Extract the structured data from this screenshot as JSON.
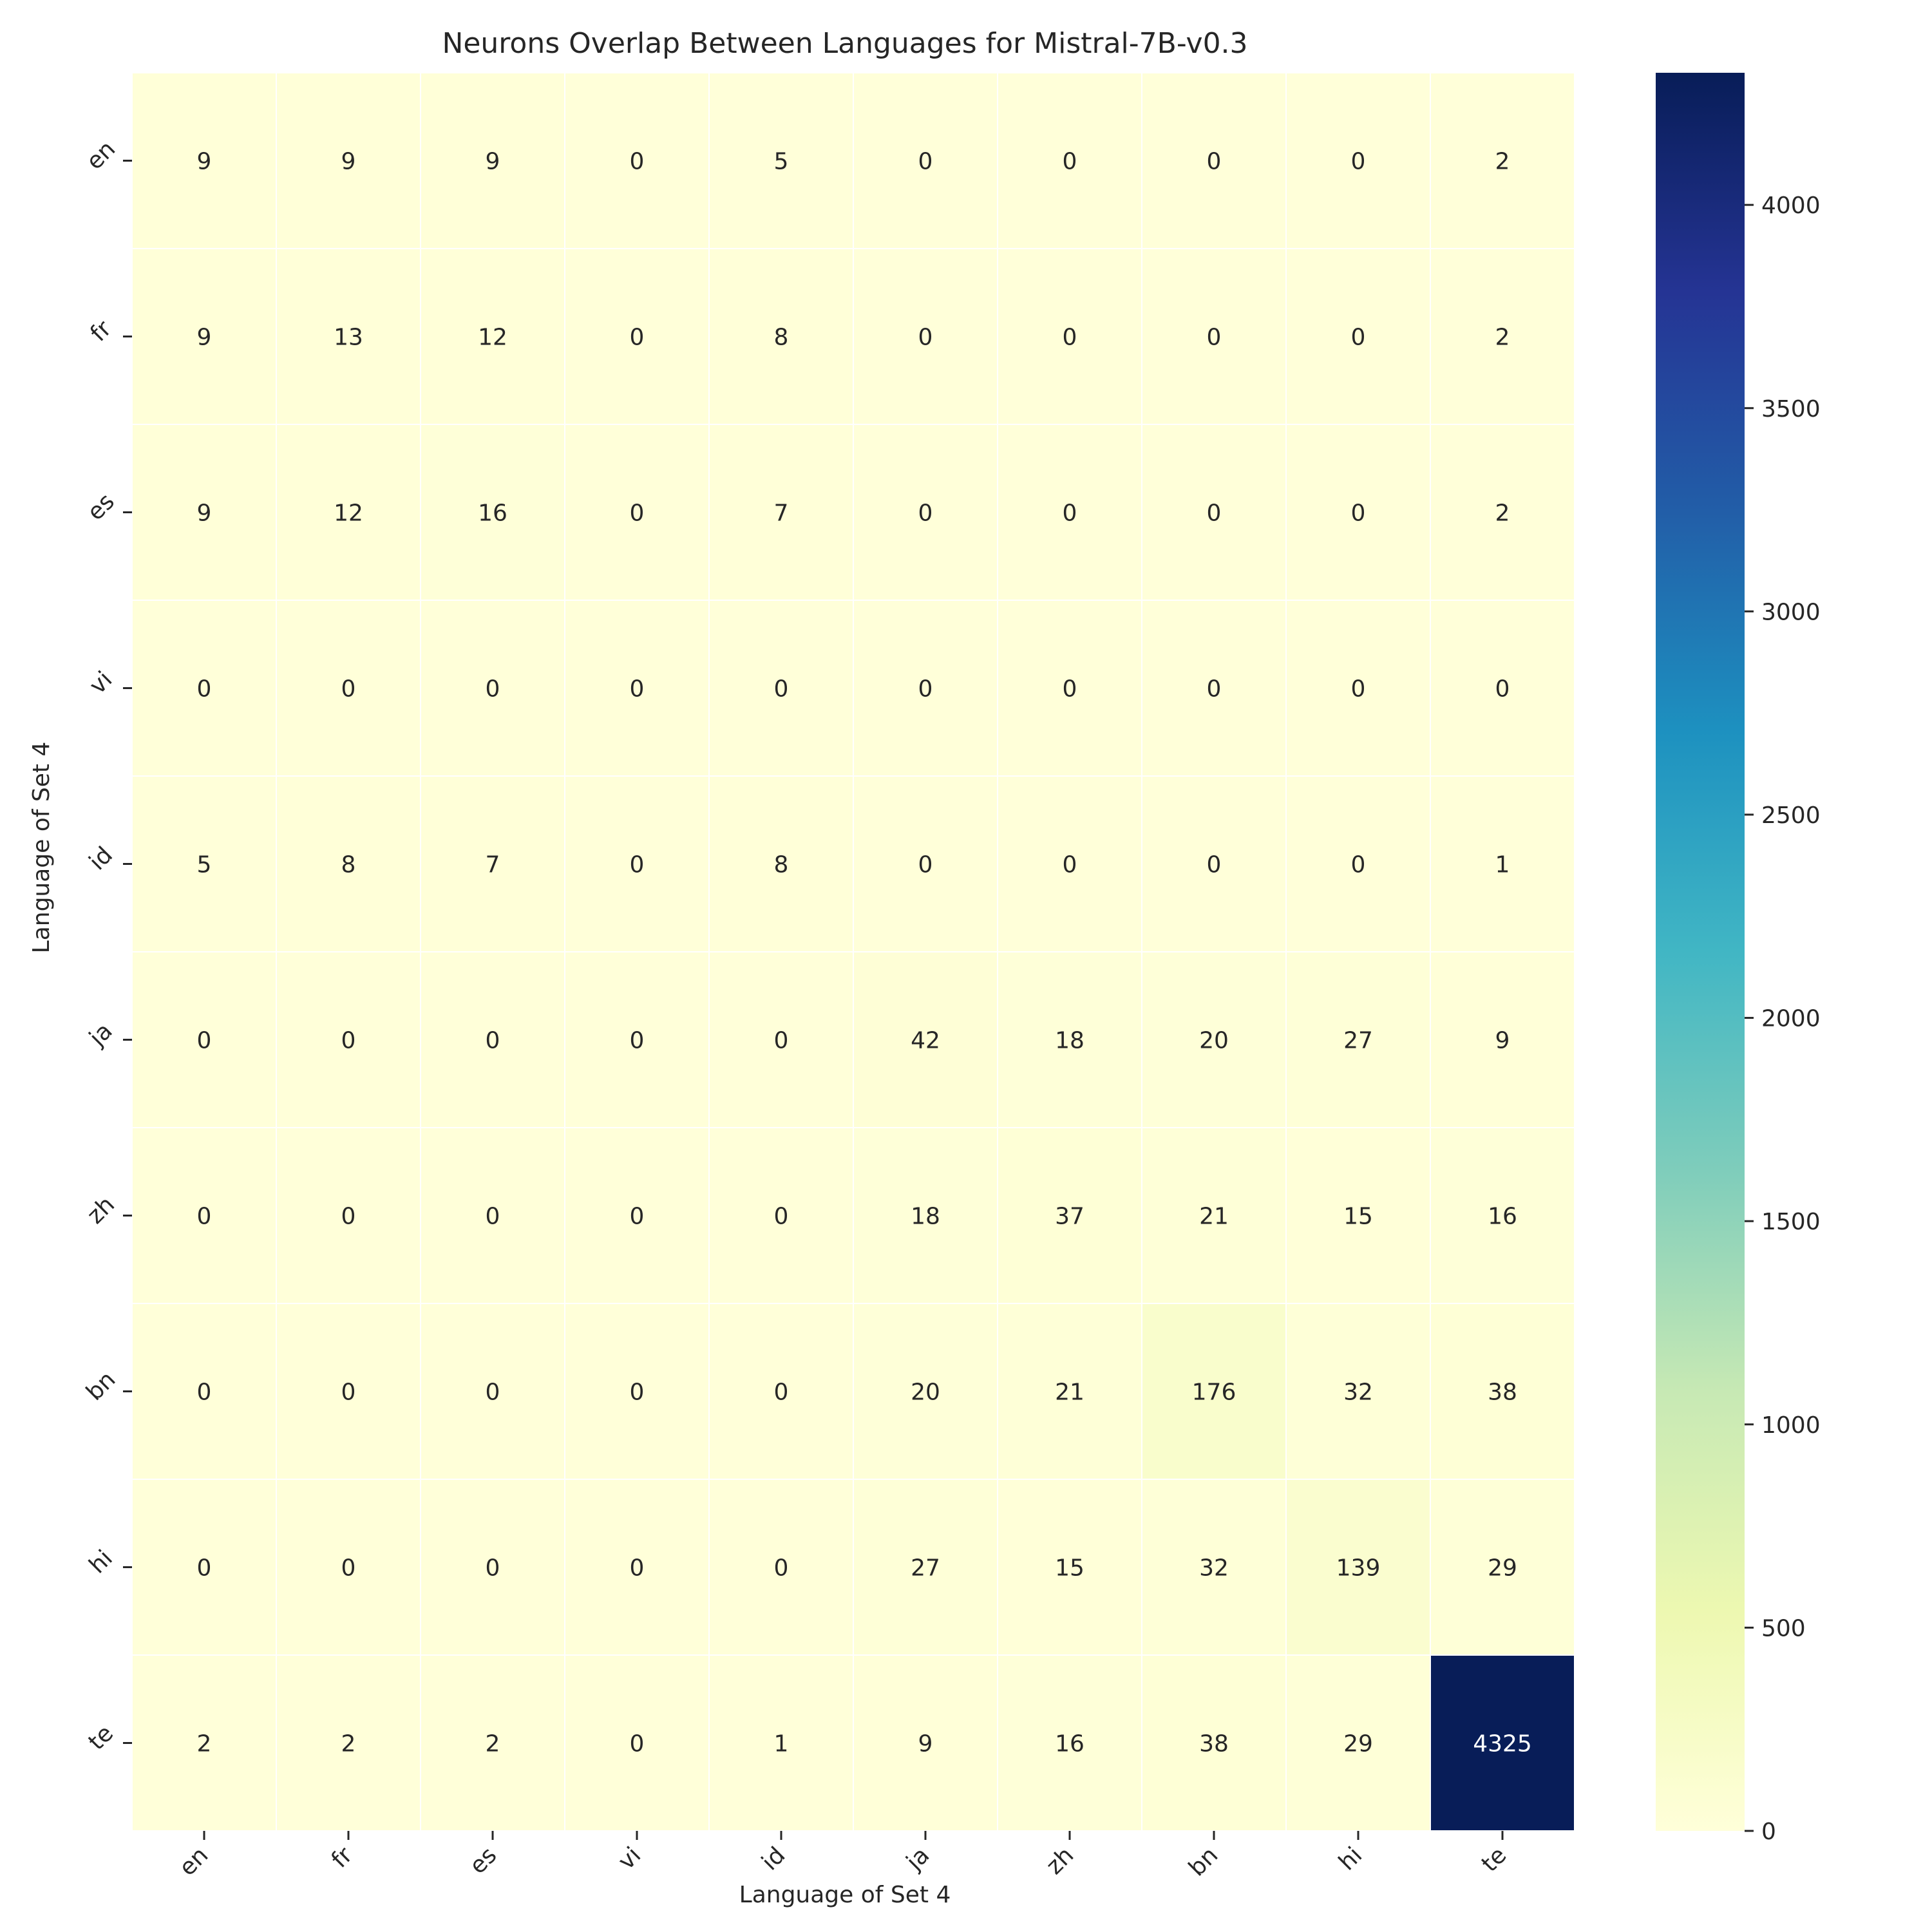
{
  "chart_data": {
    "type": "heatmap",
    "title": "Neurons Overlap Between Languages for Mistral-7B-v0.3",
    "xlabel": "Language of Set 4",
    "ylabel": "Language of Set 4",
    "x_categories": [
      "en",
      "fr",
      "es",
      "vi",
      "id",
      "ja",
      "zh",
      "bn",
      "hi",
      "te"
    ],
    "y_categories": [
      "en",
      "fr",
      "es",
      "vi",
      "id",
      "ja",
      "zh",
      "bn",
      "hi",
      "te"
    ],
    "values": [
      [
        9,
        9,
        9,
        0,
        5,
        0,
        0,
        0,
        0,
        2
      ],
      [
        9,
        13,
        12,
        0,
        8,
        0,
        0,
        0,
        0,
        2
      ],
      [
        9,
        12,
        16,
        0,
        7,
        0,
        0,
        0,
        0,
        2
      ],
      [
        0,
        0,
        0,
        0,
        0,
        0,
        0,
        0,
        0,
        0
      ],
      [
        5,
        8,
        7,
        0,
        8,
        0,
        0,
        0,
        0,
        1
      ],
      [
        0,
        0,
        0,
        0,
        0,
        42,
        18,
        20,
        27,
        9
      ],
      [
        0,
        0,
        0,
        0,
        0,
        18,
        37,
        21,
        15,
        16
      ],
      [
        0,
        0,
        0,
        0,
        0,
        20,
        21,
        176,
        32,
        38
      ],
      [
        0,
        0,
        0,
        0,
        0,
        27,
        15,
        32,
        139,
        29
      ],
      [
        2,
        2,
        2,
        0,
        1,
        9,
        16,
        38,
        29,
        4325
      ]
    ],
    "colormap": "YlGnBu",
    "color_range": [
      0,
      4325
    ],
    "colorbar_ticks": [
      0,
      500,
      1000,
      1500,
      2000,
      2500,
      3000,
      3500,
      4000
    ],
    "colors": {
      "low": "#ffffd9",
      "high": "#081d58",
      "cell_border": "#ffffff",
      "text_dark": "#262626",
      "text_light": "#ffffff"
    },
    "grid": false,
    "legend": "colorbar-right"
  }
}
